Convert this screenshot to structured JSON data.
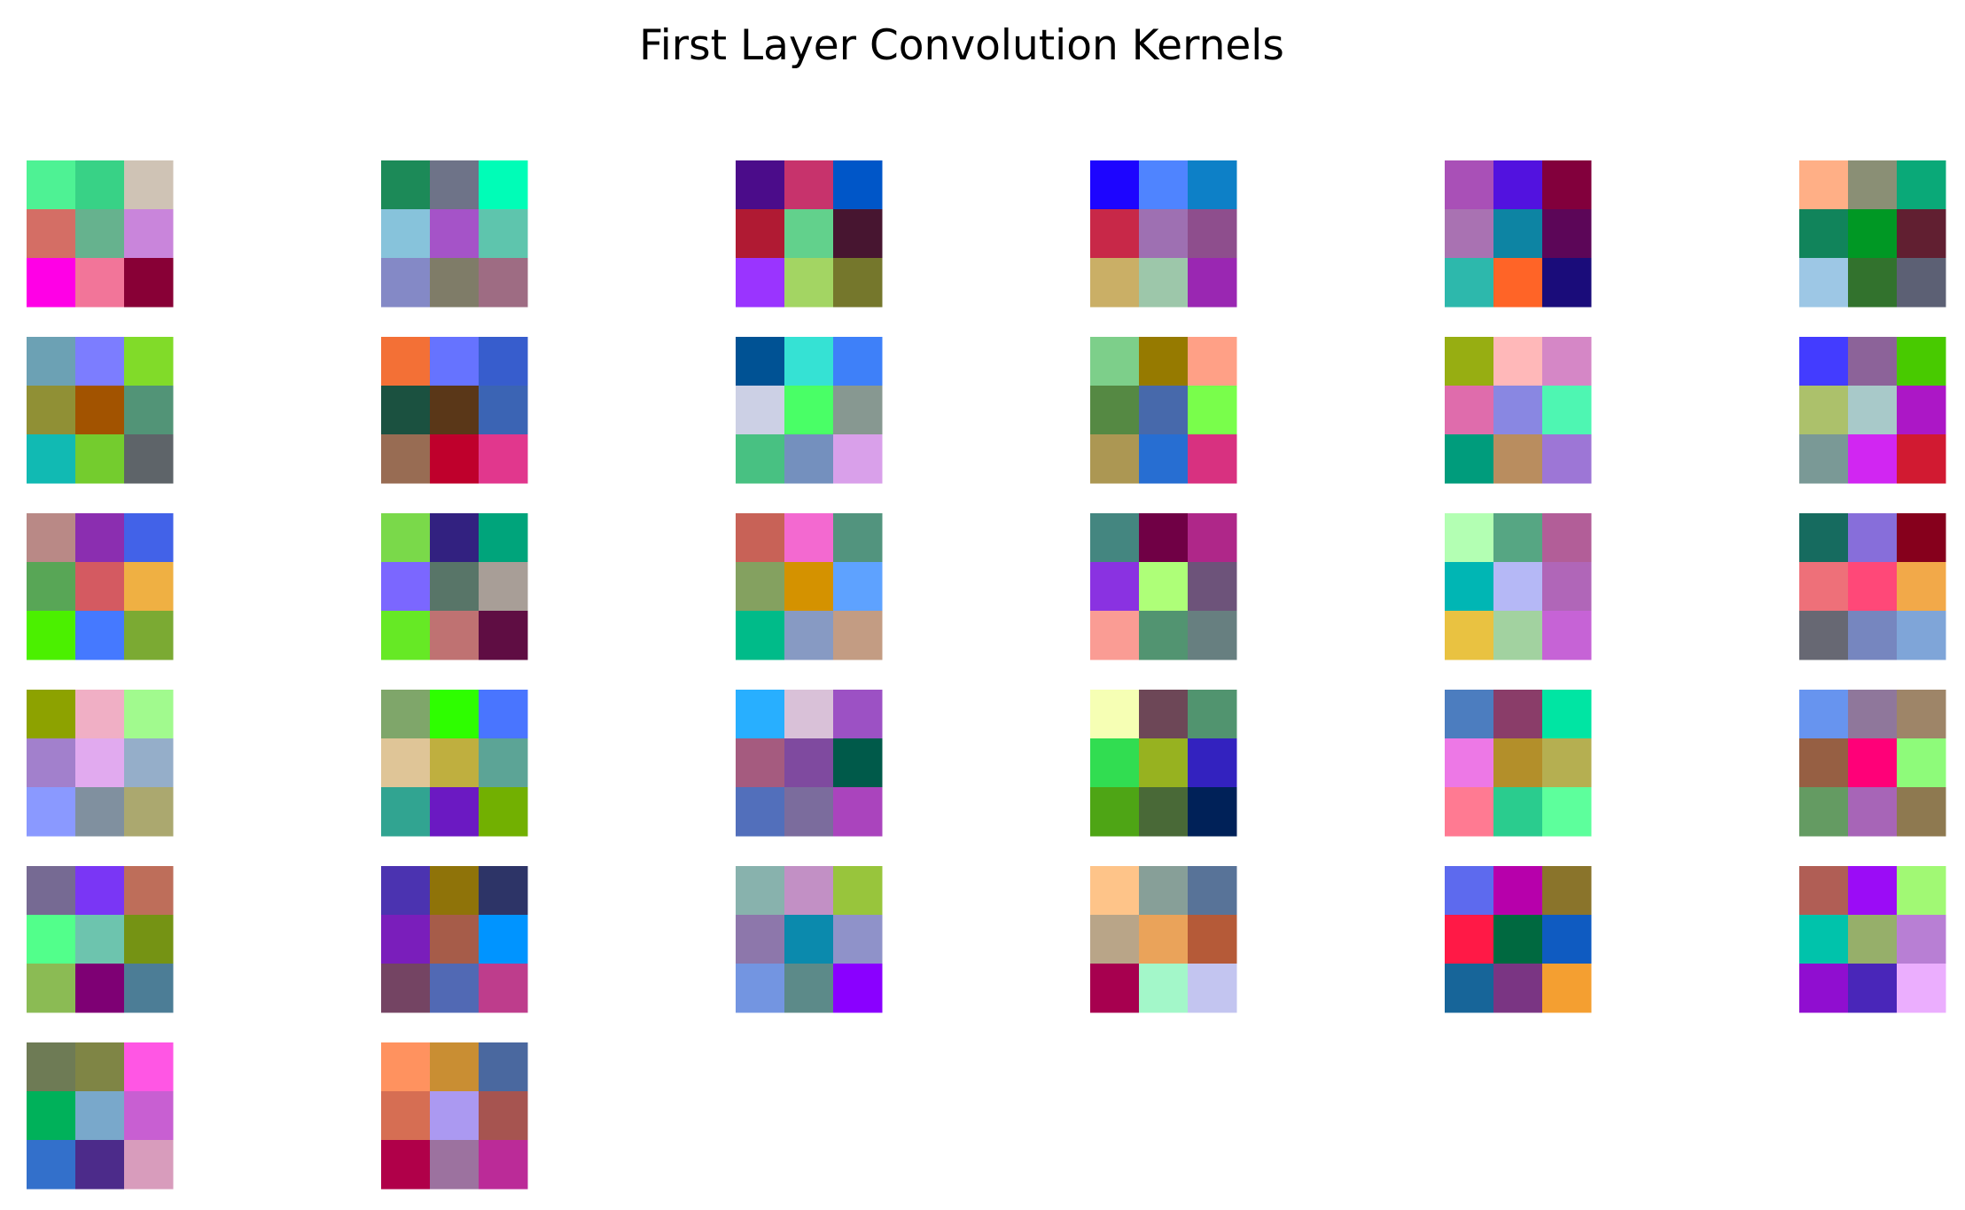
{
  "chart_data": {
    "type": "heatmap",
    "title": "First Layer Convolution Kernels",
    "kernel_count": 32,
    "grid_columns": 6,
    "kernel_shape": [
      3,
      3,
      3
    ],
    "axes_visible": false,
    "kernels": [
      [
        [
          "#4EF294",
          "#38D286",
          "#CFC3B5"
        ],
        [
          "#D46E65",
          "#66B28E",
          "#C985DB"
        ],
        [
          "#FF00E6",
          "#F27599",
          "#880036"
        ]
      ],
      [
        [
          "#1C8A58",
          "#6E7388",
          "#00FDB7"
        ],
        [
          "#87C3DB",
          "#A553C8",
          "#5EC5AD"
        ],
        [
          "#8489C6",
          "#7F7C68",
          "#9E6C83"
        ]
      ],
      [
        [
          "#4B0C8A",
          "#C7336C",
          "#0056C8"
        ],
        [
          "#B01A33",
          "#62D18C",
          "#471530"
        ],
        [
          "#9A34FF",
          "#A3D563",
          "#75772C"
        ]
      ],
      [
        [
          "#1D05FF",
          "#4F84FF",
          "#0D80C7"
        ],
        [
          "#C82848",
          "#9E70B2",
          "#8E4E8D"
        ],
        [
          "#CAAF66",
          "#9DC7AA",
          "#9A27B2"
        ]
      ],
      [
        [
          "#A950B7",
          "#5212DF",
          "#82003C"
        ],
        [
          "#A972B2",
          "#0D84A3",
          "#5C0658"
        ],
        [
          "#2DB8AC",
          "#FF6427",
          "#1A0C7A"
        ]
      ],
      [
        [
          "#FFAF86",
          "#8A8F75",
          "#0AA978"
        ],
        [
          "#11845B",
          "#009824",
          "#611F31"
        ],
        [
          "#9DC7E5",
          "#32722D",
          "#5C6074"
        ]
      ],
      [
        [
          "#6CA1B4",
          "#7C7DFF",
          "#81DB29"
        ],
        [
          "#909035",
          "#A25300",
          "#529477"
        ],
        [
          "#11BAB3",
          "#74CC2E",
          "#5E6469"
        ]
      ],
      [
        [
          "#F37036",
          "#6673FF",
          "#375DCD"
        ],
        [
          "#1B5140",
          "#5A3718",
          "#3B64B4"
        ],
        [
          "#986C53",
          "#BF002C",
          "#E1378D"
        ]
      ],
      [
        [
          "#005294",
          "#35E2D4",
          "#3E80F9"
        ],
        [
          "#CCD0E5",
          "#49FF66",
          "#879891"
        ],
        [
          "#48C182",
          "#7490BE",
          "#D9A0EA"
        ]
      ],
      [
        [
          "#7DCF8A",
          "#967A00",
          "#FFA086"
        ],
        [
          "#558943",
          "#4769AB",
          "#79FE4B"
        ],
        [
          "#AC9753",
          "#276ED2",
          "#D83180"
        ]
      ],
      [
        [
          "#97AE12",
          "#FFB8B9",
          "#D587C6"
        ],
        [
          "#DF6CAC",
          "#8987E2",
          "#4EF6B2"
        ],
        [
          "#009C7C",
          "#B98D5F",
          "#9D76D6"
        ]
      ],
      [
        [
          "#433CFF",
          "#8C6399",
          "#48CA00"
        ],
        [
          "#ACC16B",
          "#A8C9C9",
          "#AC17C6"
        ],
        [
          "#7A9996",
          "#D126F2",
          "#D11A31"
        ]
      ],
      [
        [
          "#B98986",
          "#8B2EB0",
          "#4262E8"
        ],
        [
          "#58A656",
          "#D45A61",
          "#EFB043"
        ],
        [
          "#4BF000",
          "#4579FF",
          "#7BAA33"
        ]
      ],
      [
        [
          "#7AD94A",
          "#322180",
          "#00A47B"
        ],
        [
          "#7B67FF",
          "#587568",
          "#A89E97"
        ],
        [
          "#66E925",
          "#BF7272",
          "#5F0D43"
        ]
      ],
      [
        [
          "#C86257",
          "#F369D0",
          "#52947E"
        ],
        [
          "#84A160",
          "#D49200",
          "#5EA2FF"
        ],
        [
          "#00BB89",
          "#879AC3",
          "#C39C83"
        ]
      ],
      [
        [
          "#448680",
          "#700045",
          "#AF2789"
        ],
        [
          "#8A32E1",
          "#AEFF78",
          "#6D537A"
        ],
        [
          "#FA9C94",
          "#529471",
          "#677F80"
        ]
      ],
      [
        [
          "#B3FFB3",
          "#56A683",
          "#B25E98"
        ],
        [
          "#00B6B4",
          "#B5B8F6",
          "#B066B8"
        ],
        [
          "#E9C241",
          "#A2D2A0",
          "#C663D6"
        ]
      ],
      [
        [
          "#166B5F",
          "#876EDA",
          "#86001C"
        ],
        [
          "#EE7079",
          "#FF4878",
          "#F2A949"
        ],
        [
          "#676873",
          "#7686BF",
          "#7FA5D8"
        ]
      ],
      [
        [
          "#8DA200",
          "#F0AFC5",
          "#A1FA8E"
        ],
        [
          "#A280CC",
          "#E1AAEF",
          "#95AEC9"
        ],
        [
          "#8A99FF",
          "#80909F",
          "#ABA86F"
        ]
      ],
      [
        [
          "#7FA66A",
          "#2EFE00",
          "#4975FF"
        ],
        [
          "#DFC597",
          "#BFAF3F",
          "#5CA496"
        ],
        [
          "#31A491",
          "#6B19C2",
          "#72B001"
        ]
      ],
      [
        [
          "#28AFFF",
          "#D9C1D8",
          "#9C51C4"
        ],
        [
          "#A55B7F",
          "#7F4A9F",
          "#005A4A"
        ],
        [
          "#526FBB",
          "#7B6C9D",
          "#AA44BD"
        ]
      ],
      [
        [
          "#F6FFB4",
          "#6D4757",
          "#51946F"
        ],
        [
          "#31DD51",
          "#97B220",
          "#3322BF"
        ],
        [
          "#4EA515",
          "#496937",
          "#002158"
        ]
      ],
      [
        [
          "#4C7DBF",
          "#8A3D69",
          "#00E5A3"
        ],
        [
          "#ED78E6",
          "#B38F2A",
          "#B5AF51"
        ],
        [
          "#FF7A92",
          "#2ACC8E",
          "#5DFF9C"
        ]
      ],
      [
        [
          "#6794EF",
          "#8F779B",
          "#9E8568"
        ],
        [
          "#965F43",
          "#FF0078",
          "#8EFB7A"
        ],
        [
          "#649B62",
          "#A765B7",
          "#8E7950"
        ]
      ],
      [
        [
          "#766A93",
          "#7A36F5",
          "#BE6E5A"
        ],
        [
          "#52FF8B",
          "#6DC4AE",
          "#759314"
        ],
        [
          "#8BBB54",
          "#7E0074",
          "#4C7D96"
        ]
      ],
      [
        [
          "#4B33B0",
          "#8F7309",
          "#2D3467"
        ],
        [
          "#7A1EBB",
          "#A65C49",
          "#0094FF"
        ],
        [
          "#744463",
          "#5169B4",
          "#BE3D8C"
        ]
      ],
      [
        [
          "#88B2AD",
          "#C290C5",
          "#98C53C"
        ],
        [
          "#8D77AB",
          "#0B8AAD",
          "#8F92C9"
        ],
        [
          "#7395E1",
          "#5C8A89",
          "#8A00FF"
        ]
      ],
      [
        [
          "#FEC489",
          "#879F98",
          "#587398"
        ],
        [
          "#B9A588",
          "#EAA35A",
          "#B55A38"
        ],
        [
          "#A7004F",
          "#A3F7C9",
          "#C3C5F0"
        ]
      ],
      [
        [
          "#5D6AEE",
          "#B700AB",
          "#8A742B"
        ],
        [
          "#FF1946",
          "#006940",
          "#0F5BC1"
        ],
        [
          "#176599",
          "#7A3583",
          "#F49F31"
        ]
      ],
      [
        [
          "#B05E55",
          "#9B0CF6",
          "#A1F974"
        ],
        [
          "#00C3AB",
          "#96AF6A",
          "#B87FD4"
        ],
        [
          "#900ED0",
          "#4926B9",
          "#EBAEFE"
        ]
      ],
      [
        [
          "#6E7B55",
          "#7F8545",
          "#FF56E4"
        ],
        [
          "#00B15A",
          "#79A8CB",
          "#C85FD2"
        ],
        [
          "#3370CB",
          "#4C2B8A",
          "#D89CBC"
        ]
      ],
      [
        [
          "#FF925F",
          "#C98E33",
          "#4A689F"
        ],
        [
          "#D66E53",
          "#AB99F1",
          "#A65450"
        ],
        [
          "#B00049",
          "#9C729F",
          "#BB2B98"
        ]
      ]
    ]
  }
}
